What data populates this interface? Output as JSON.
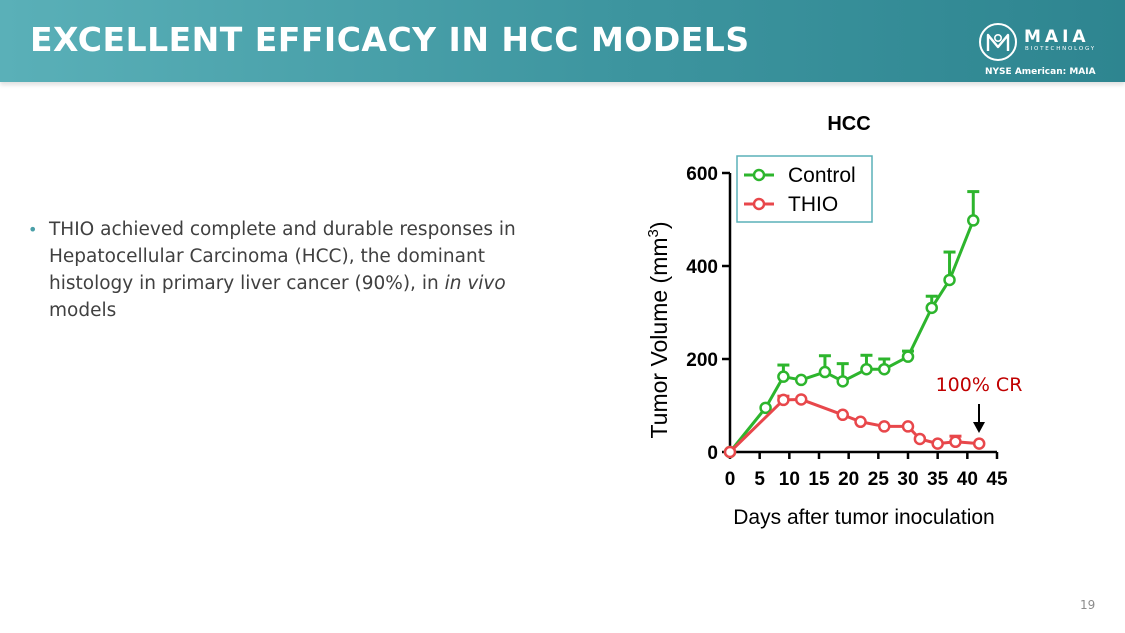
{
  "header": {
    "title": "EXCELLENT EFFICACY IN HCC MODELS",
    "logo_word": "MAIA",
    "logo_sub": "BIOTECHNOLOGY",
    "ticker": "NYSE American: MAIA"
  },
  "body": {
    "bullet_pre": "THIO achieved complete and durable responses in Hepatocellular Carcinoma (HCC), the dominant histology in primary liver cancer (90%), in ",
    "bullet_italic": "in vivo",
    "bullet_post": " models"
  },
  "page_number": "19",
  "colors": {
    "header_start": "#5ab0b8",
    "header_end": "#2e8590",
    "control": "#2db52d",
    "thio": "#e8474b",
    "annotation": "#c00000"
  },
  "chart_data": {
    "type": "line",
    "title": "HCC",
    "xlabel": "Days after tumor inoculation",
    "ylabel_main": "Tumor Volume (mm",
    "ylabel_sup": "3",
    "ylabel_close": ")",
    "xlim": [
      0,
      45
    ],
    "ylim": [
      0,
      600
    ],
    "xticks": [
      0,
      5,
      10,
      15,
      20,
      25,
      30,
      35,
      40,
      45
    ],
    "yticks": [
      0,
      200,
      400,
      600
    ],
    "legend_position": "top-left",
    "series": [
      {
        "name": "Control",
        "color": "#2db52d",
        "x": [
          0,
          6,
          9,
          12,
          16,
          19,
          23,
          26,
          30,
          34,
          37,
          41
        ],
        "y": [
          0,
          95,
          162,
          155,
          172,
          152,
          178,
          178,
          205,
          310,
          370,
          498
        ],
        "err": [
          0,
          0,
          25,
          0,
          35,
          38,
          30,
          22,
          12,
          25,
          60,
          62
        ]
      },
      {
        "name": "THIO",
        "color": "#e8474b",
        "x": [
          0,
          9,
          12,
          19,
          22,
          26,
          30,
          32,
          35,
          38,
          42
        ],
        "y": [
          0,
          112,
          113,
          80,
          65,
          55,
          55,
          28,
          18,
          22,
          18
        ],
        "err": [
          0,
          8,
          0,
          0,
          0,
          0,
          0,
          0,
          0,
          12,
          0
        ]
      }
    ],
    "annotation": {
      "text": "100% CR",
      "x": 42,
      "arrow": true
    }
  }
}
